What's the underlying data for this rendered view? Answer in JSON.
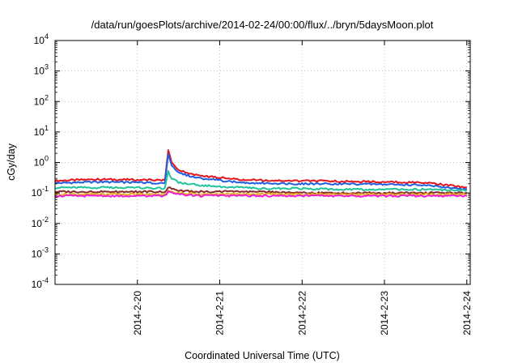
{
  "chart_data": {
    "type": "line",
    "title": "/data/run/goesPlots/archive/2014-02-24/00:00/flux/../bryn/5daysMoon.plot",
    "xlabel": "Coordinated Universal Time (UTC)",
    "ylabel": "cGy/day",
    "yscale": "log",
    "ylim": [
      0.0001,
      10000
    ],
    "xlim": [
      "2014-02-19 00:00",
      "2014-02-24 01:00"
    ],
    "grid": true,
    "x_ticks": [
      "2014-2-20",
      "2014-2-21",
      "2014-2-22",
      "2014-2-23",
      "2014-2-24"
    ],
    "y_ticks": [
      {
        "base": "10",
        "exp": "-4"
      },
      {
        "base": "10",
        "exp": "-3"
      },
      {
        "base": "10",
        "exp": "-2"
      },
      {
        "base": "10",
        "exp": "-1"
      },
      {
        "base": "10",
        "exp": "0"
      },
      {
        "base": "10",
        "exp": "1"
      },
      {
        "base": "10",
        "exp": "2"
      },
      {
        "base": "10",
        "exp": "3"
      },
      {
        "base": "10",
        "exp": "4"
      }
    ],
    "x": [
      "2014-02-19 00:00",
      "2014-02-19 12:00",
      "2014-02-20 00:00",
      "2014-02-20 08:00",
      "2014-02-20 09:00",
      "2014-02-20 10:00",
      "2014-02-20 12:00",
      "2014-02-20 18:00",
      "2014-02-21 00:00",
      "2014-02-21 06:00",
      "2014-02-21 12:00",
      "2014-02-22 00:00",
      "2014-02-22 12:00",
      "2014-02-23 00:00",
      "2014-02-23 12:00",
      "2014-02-24 00:00"
    ],
    "series": [
      {
        "color": "#e8141c",
        "values": [
          0.25,
          0.28,
          0.27,
          0.26,
          2.6,
          1.0,
          0.55,
          0.36,
          0.32,
          0.27,
          0.26,
          0.25,
          0.24,
          0.23,
          0.22,
          0.15
        ]
      },
      {
        "color": "#1f5fe0",
        "values": [
          0.21,
          0.23,
          0.22,
          0.21,
          1.9,
          0.8,
          0.45,
          0.3,
          0.26,
          0.22,
          0.21,
          0.2,
          0.2,
          0.19,
          0.18,
          0.13
        ]
      },
      {
        "color": "#20c49a",
        "values": [
          0.15,
          0.15,
          0.15,
          0.14,
          0.5,
          0.3,
          0.22,
          0.18,
          0.16,
          0.15,
          0.14,
          0.14,
          0.13,
          0.13,
          0.13,
          0.12
        ]
      },
      {
        "color": "#8a2a2a",
        "values": [
          0.11,
          0.11,
          0.11,
          0.11,
          0.16,
          0.14,
          0.12,
          0.11,
          0.11,
          0.11,
          0.11,
          0.1,
          0.1,
          0.1,
          0.1,
          0.1
        ]
      },
      {
        "color": "#e8b020",
        "values": [
          0.09,
          0.09,
          0.09,
          0.09,
          0.12,
          0.11,
          0.1,
          0.09,
          0.09,
          0.09,
          0.09,
          0.09,
          0.09,
          0.09,
          0.09,
          0.09
        ]
      },
      {
        "color": "#ee1ed2",
        "values": [
          0.08,
          0.08,
          0.08,
          0.08,
          0.11,
          0.1,
          0.09,
          0.08,
          0.08,
          0.08,
          0.08,
          0.08,
          0.08,
          0.08,
          0.08,
          0.08
        ]
      }
    ]
  }
}
